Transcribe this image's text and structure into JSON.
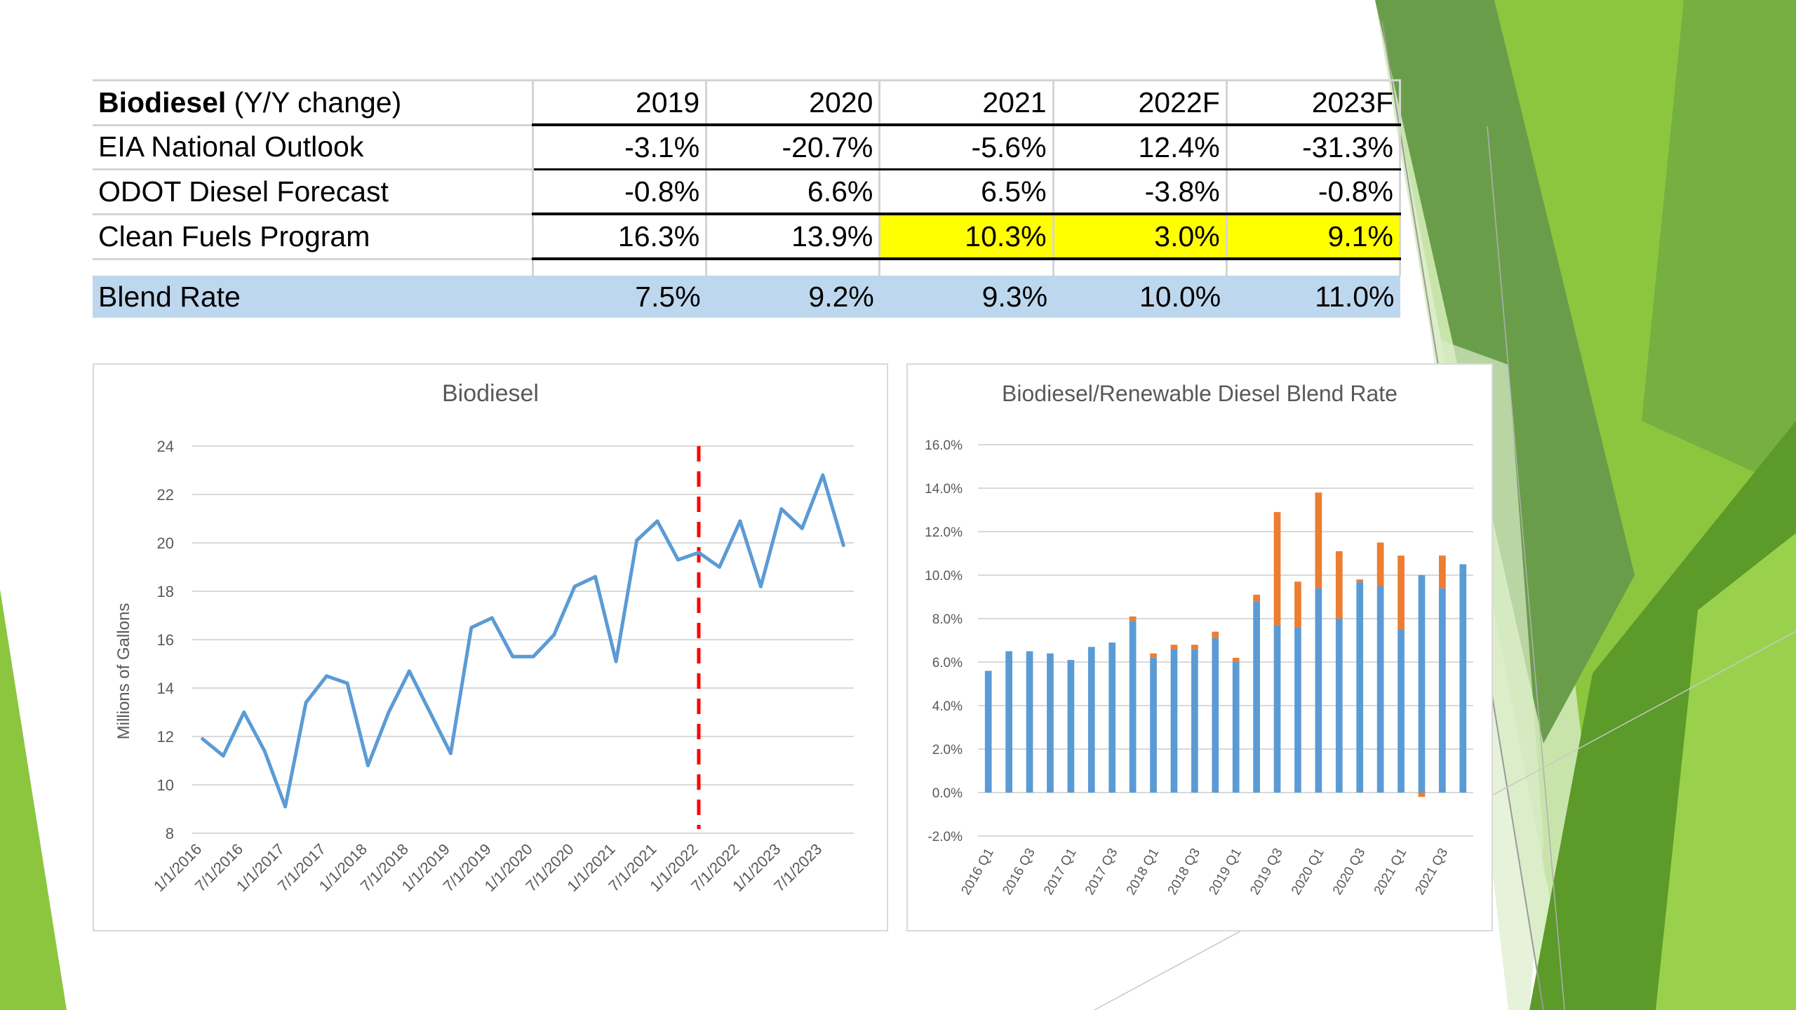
{
  "table": {
    "header": {
      "label_bold": "Biodiesel",
      "label_rest": " (Y/Y change)",
      "years": [
        "2019",
        "2020",
        "2021",
        "2022F",
        "2023F"
      ]
    },
    "rows": [
      {
        "label": "EIA National Outlook",
        "values": [
          "-3.1%",
          "-20.7%",
          "-5.6%",
          "12.4%",
          "-31.3%"
        ]
      },
      {
        "label": "ODOT Diesel Forecast",
        "values": [
          "-0.8%",
          "6.6%",
          "6.5%",
          "-3.8%",
          "-0.8%"
        ]
      },
      {
        "label": "Clean Fuels Program",
        "values": [
          "16.3%",
          "13.9%",
          "10.3%",
          "3.0%",
          "9.1%"
        ],
        "highlight_from_index": 2,
        "highlight_color": "#ffff00"
      }
    ],
    "blend": {
      "label": "Blend Rate",
      "values": [
        "7.5%",
        "9.2%",
        "9.3%",
        "10.0%",
        "11.0%"
      ],
      "fill_color": "#bdd7ee"
    }
  },
  "chart_data": [
    {
      "type": "line",
      "title": "Biodiesel",
      "ylabel": "Millions of Gallons",
      "xlabel": "",
      "ylim": [
        8,
        24
      ],
      "yticks": [
        8,
        10,
        12,
        14,
        16,
        18,
        20,
        22,
        24
      ],
      "grid": true,
      "x_tick_labels": [
        "1/1/2016",
        "7/1/2016",
        "1/1/2017",
        "7/1/2017",
        "1/1/2018",
        "7/1/2018",
        "1/1/2019",
        "7/1/2019",
        "1/1/2020",
        "7/1/2020",
        "1/1/2021",
        "7/1/2021",
        "1/1/2022",
        "7/1/2022",
        "1/1/2023",
        "7/1/2023"
      ],
      "series": [
        {
          "color": "#5b9bd5",
          "values": [
            11.9,
            11.2,
            13.0,
            11.4,
            9.1,
            13.4,
            14.5,
            14.2,
            10.8,
            13.0,
            14.7,
            13.0,
            11.3,
            16.5,
            16.9,
            15.3,
            15.3,
            16.2,
            18.2,
            18.6,
            15.1,
            20.1,
            20.9,
            19.3,
            19.6,
            19.0,
            20.9,
            18.2,
            21.4,
            20.6,
            22.8,
            19.9
          ]
        }
      ],
      "forecast_marker": {
        "at": "1/1/2022",
        "color": "#ff0000",
        "style": "dashed"
      }
    },
    {
      "type": "bar",
      "title": "Biodiesel/Renewable Diesel Blend Rate",
      "stacked": true,
      "ylim": [
        -2.0,
        16.0
      ],
      "yticks": [
        "-2.0%",
        "0.0%",
        "2.0%",
        "4.0%",
        "6.0%",
        "8.0%",
        "10.0%",
        "12.0%",
        "14.0%",
        "16.0%"
      ],
      "grid": true,
      "categories": [
        "2016 Q1",
        "2016 Q2",
        "2016 Q3",
        "2016 Q4",
        "2017 Q1",
        "2017 Q2",
        "2017 Q3",
        "2017 Q4",
        "2018 Q1",
        "2018 Q2",
        "2018 Q3",
        "2018 Q4",
        "2019 Q1",
        "2019 Q2",
        "2019 Q3",
        "2019 Q4",
        "2020 Q1",
        "2020 Q2",
        "2020 Q3",
        "2020 Q4",
        "2021 Q1",
        "2021 Q2",
        "2021 Q3",
        "2021 Q4"
      ],
      "x_tick_labels": [
        "2016 Q1",
        "2016 Q3",
        "2017 Q1",
        "2017 Q3",
        "2018 Q1",
        "2018 Q3",
        "2019 Q1",
        "2019 Q3",
        "2020 Q1",
        "2020 Q3",
        "2021 Q1",
        "2021 Q3"
      ],
      "series": [
        {
          "color": "#5b9bd5",
          "values": [
            5.6,
            6.5,
            6.5,
            6.4,
            6.1,
            6.7,
            6.9,
            7.9,
            6.2,
            6.6,
            6.6,
            7.1,
            6.0,
            8.8,
            7.7,
            7.6,
            9.4,
            8.0,
            9.7,
            9.5,
            7.5,
            10.0,
            9.4,
            10.5
          ]
        },
        {
          "color": "#ed7d31",
          "values": [
            0,
            0,
            0,
            0,
            0,
            0,
            0,
            0.2,
            0.2,
            0.2,
            0.2,
            0.3,
            0.2,
            0.3,
            5.2,
            2.1,
            4.4,
            3.1,
            0.1,
            2.0,
            3.4,
            -0.2,
            1.5,
            0
          ]
        }
      ]
    }
  ]
}
